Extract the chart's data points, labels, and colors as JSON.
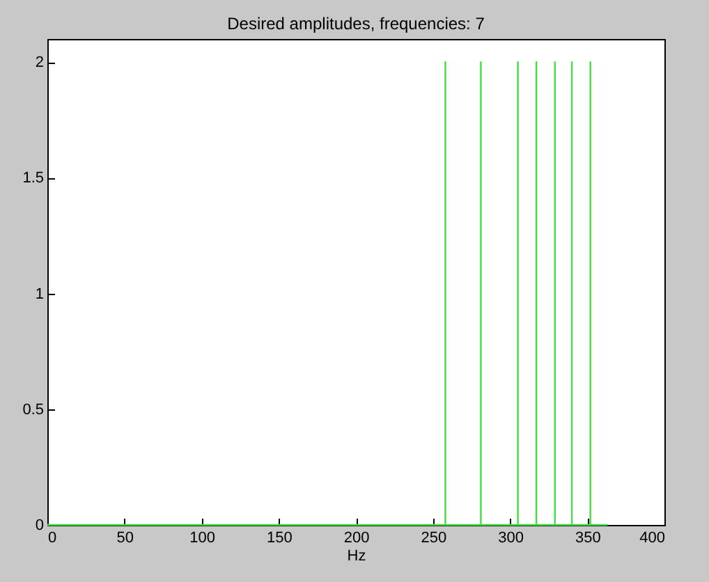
{
  "chart_data": {
    "type": "line",
    "title": "Desired amplitudes, frequencies: 7",
    "xlabel": "Hz",
    "series": [
      {
        "color": "#44dd44",
        "x": [
          0,
          258,
          258,
          258,
          281,
          281,
          281,
          305,
          305,
          305,
          317,
          317,
          317,
          329,
          329,
          329,
          340,
          340,
          340,
          352,
          352,
          352,
          363
        ],
        "values": [
          0,
          0,
          2,
          0,
          0,
          2,
          0,
          0,
          2,
          0,
          0,
          2,
          0,
          0,
          2,
          0,
          0,
          2,
          0,
          0,
          2,
          0,
          0
        ]
      }
    ],
    "xlim": [
      0,
      400
    ],
    "xticks": [
      0,
      50,
      100,
      150,
      200,
      250,
      300,
      350,
      400
    ],
    "ylim": [
      0,
      2.1
    ],
    "yticks": [
      0,
      0.5,
      1,
      1.5,
      2
    ],
    "grid": false,
    "marker": "none",
    "line_style": "solid"
  }
}
